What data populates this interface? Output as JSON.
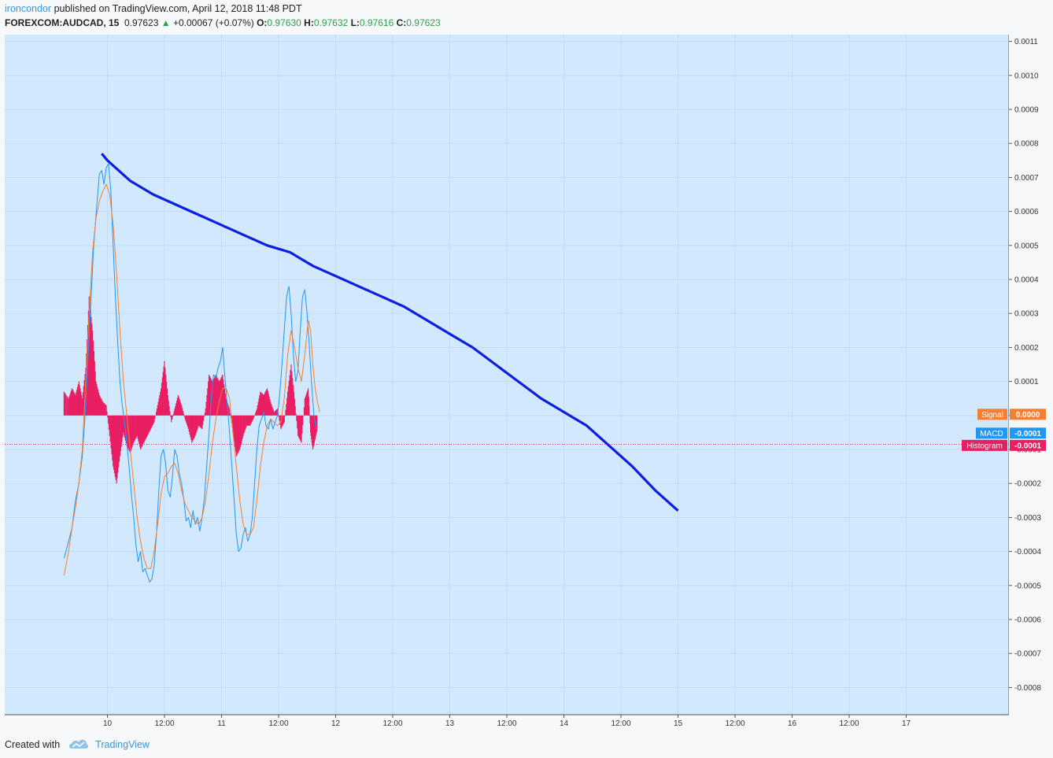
{
  "header": {
    "author": "ironcondor",
    "published_text": "published on TradingView.com, April 12, 2018 11:48 PDT",
    "symbol": "FOREXCOM:AUDCAD, 15",
    "last": "0.97623",
    "change": "+0.00067 (+0.07%)",
    "o_label": "O:",
    "o_value": "0.97630",
    "h_label": "H:",
    "h_value": "0.97632",
    "l_label": "L:",
    "l_value": "0.97616",
    "c_label": "C:",
    "c_value": "0.97623"
  },
  "footer": {
    "created_with": "Created with",
    "brand": "TradingView"
  },
  "colors": {
    "plot_bg": "#d2e8fc",
    "grid": "#c5dcf2",
    "macd": "#2196f3",
    "signal": "#f57f33",
    "histogram": "#e91e63",
    "trend": "#0b1fe0"
  },
  "chart_data": {
    "type": "line",
    "y_range": [
      -0.00088,
      0.00112
    ],
    "y_ticks": [
      "0.0011",
      "0.0010",
      "0.0009",
      "0.0008",
      "0.0007",
      "0.0006",
      "0.0005",
      "0.0004",
      "0.0003",
      "0.0002",
      "0.0001",
      "-0.0000",
      "-0.0001",
      "-0.0002",
      "-0.0003",
      "-0.0004",
      "-0.0005",
      "-0.0006",
      "-0.0007",
      "-0.0008"
    ],
    "x_range": [
      -0.9,
      7.9
    ],
    "x_ticks": [
      {
        "x": 0,
        "label": "10"
      },
      {
        "x": 0.5,
        "label": "12:00"
      },
      {
        "x": 1,
        "label": "11"
      },
      {
        "x": 1.5,
        "label": "12:00"
      },
      {
        "x": 2,
        "label": "12"
      },
      {
        "x": 2.5,
        "label": "12:00"
      },
      {
        "x": 3,
        "label": "13"
      },
      {
        "x": 3.5,
        "label": "12:00"
      },
      {
        "x": 4,
        "label": "14"
      },
      {
        "x": 4.5,
        "label": "12:00"
      },
      {
        "x": 5,
        "label": "15"
      },
      {
        "x": 5.5,
        "label": "12:00"
      },
      {
        "x": 6,
        "label": "16"
      },
      {
        "x": 6.5,
        "label": "12:00"
      },
      {
        "x": 7,
        "label": "17"
      }
    ],
    "series": [
      {
        "name": "MACD",
        "points": [
          [
            -0.38,
            -0.00042
          ],
          [
            -0.34,
            -0.00037
          ],
          [
            -0.31,
            -0.00033
          ],
          [
            -0.28,
            -0.00025
          ],
          [
            -0.25,
            -0.0002
          ],
          [
            -0.22,
            -0.00012
          ],
          [
            -0.2,
            -2e-05
          ],
          [
            -0.18,
            0.0001
          ],
          [
            -0.15,
            0.0003
          ],
          [
            -0.12,
            0.0005
          ],
          [
            -0.09,
            0.00063
          ],
          [
            -0.07,
            0.00071
          ],
          [
            -0.05,
            0.00072
          ],
          [
            -0.03,
            0.00068
          ],
          [
            -0.01,
            0.00073
          ],
          [
            0.01,
            0.00074
          ],
          [
            0.03,
            0.00066
          ],
          [
            0.05,
            0.0005
          ],
          [
            0.07,
            0.00035
          ],
          [
            0.09,
            0.00022
          ],
          [
            0.11,
            0.0001
          ],
          [
            0.13,
            3e-05
          ],
          [
            0.15,
            -2e-05
          ],
          [
            0.17,
            -8e-05
          ],
          [
            0.19,
            -0.00015
          ],
          [
            0.21,
            -0.00023
          ],
          [
            0.23,
            -0.0003
          ],
          [
            0.25,
            -0.00038
          ],
          [
            0.27,
            -0.00043
          ],
          [
            0.29,
            -0.0004
          ],
          [
            0.31,
            -0.00046
          ],
          [
            0.33,
            -0.00045
          ],
          [
            0.35,
            -0.00047
          ],
          [
            0.37,
            -0.00049
          ],
          [
            0.39,
            -0.00048
          ],
          [
            0.41,
            -0.00044
          ],
          [
            0.43,
            -0.00035
          ],
          [
            0.45,
            -0.00022
          ],
          [
            0.47,
            -0.00012
          ],
          [
            0.49,
            -0.0001
          ],
          [
            0.51,
            -0.00014
          ],
          [
            0.53,
            -0.00022
          ],
          [
            0.55,
            -0.00024
          ],
          [
            0.57,
            -0.00018
          ],
          [
            0.59,
            -0.0001
          ],
          [
            0.61,
            -0.00012
          ],
          [
            0.63,
            -0.00017
          ],
          [
            0.65,
            -0.0002
          ],
          [
            0.67,
            -0.00025
          ],
          [
            0.69,
            -0.00031
          ],
          [
            0.71,
            -0.0003
          ],
          [
            0.73,
            -0.00033
          ],
          [
            0.75,
            -0.00028
          ],
          [
            0.77,
            -0.00032
          ],
          [
            0.79,
            -0.0003
          ],
          [
            0.81,
            -0.00034
          ],
          [
            0.83,
            -0.0003
          ],
          [
            0.85,
            -0.00024
          ],
          [
            0.87,
            -0.00015
          ],
          [
            0.89,
            -5e-05
          ],
          [
            0.91,
            5e-05
          ],
          [
            0.93,
            0.00012
          ],
          [
            0.95,
            0.00011
          ],
          [
            0.97,
            0.00014
          ],
          [
            0.99,
            0.00016
          ],
          [
            1.01,
            0.0002
          ],
          [
            1.03,
            0.00011
          ],
          [
            1.05,
            3e-05
          ],
          [
            1.07,
            -5e-05
          ],
          [
            1.09,
            -0.00015
          ],
          [
            1.11,
            -0.00025
          ],
          [
            1.13,
            -0.00035
          ],
          [
            1.15,
            -0.0004
          ],
          [
            1.17,
            -0.00039
          ],
          [
            1.19,
            -0.00035
          ],
          [
            1.21,
            -0.00033
          ],
          [
            1.23,
            -0.00037
          ],
          [
            1.25,
            -0.00035
          ],
          [
            1.27,
            -0.0003
          ],
          [
            1.29,
            -0.0002
          ],
          [
            1.31,
            -0.0001
          ],
          [
            1.33,
            -3e-05
          ],
          [
            1.35,
            -1e-05
          ],
          [
            1.37,
            1e-05
          ],
          [
            1.39,
            -3e-05
          ],
          [
            1.41,
            -4e-05
          ],
          [
            1.43,
            -1e-05
          ],
          [
            1.45,
            -4e-05
          ],
          [
            1.47,
            -2e-05
          ],
          [
            1.49,
            0.0
          ],
          [
            1.51,
            6e-05
          ],
          [
            1.53,
            0.00015
          ],
          [
            1.55,
            0.00025
          ],
          [
            1.57,
            0.00035
          ],
          [
            1.59,
            0.00038
          ],
          [
            1.61,
            0.0003
          ],
          [
            1.63,
            0.00018
          ],
          [
            1.65,
            0.0001
          ],
          [
            1.67,
            0.00013
          ],
          [
            1.69,
            0.00025
          ],
          [
            1.71,
            0.00035
          ],
          [
            1.73,
            0.00037
          ],
          [
            1.75,
            0.0003
          ],
          [
            1.77,
            0.0002
          ],
          [
            1.79,
            9e-05
          ],
          [
            1.81,
            0.0
          ],
          [
            1.83,
            -4e-05
          ]
        ]
      },
      {
        "name": "Signal",
        "points": [
          [
            -0.38,
            -0.00047
          ],
          [
            -0.34,
            -0.0004
          ],
          [
            -0.31,
            -0.00033
          ],
          [
            -0.28,
            -0.00027
          ],
          [
            -0.25,
            -0.0002
          ],
          [
            -0.22,
            -0.0001
          ],
          [
            -0.19,
            0.0001
          ],
          [
            -0.16,
            0.0003
          ],
          [
            -0.13,
            0.00048
          ],
          [
            -0.1,
            0.00058
          ],
          [
            -0.07,
            0.00063
          ],
          [
            -0.04,
            0.00066
          ],
          [
            -0.01,
            0.00068
          ],
          [
            0.02,
            0.00065
          ],
          [
            0.05,
            0.00056
          ],
          [
            0.08,
            0.00042
          ],
          [
            0.11,
            0.00025
          ],
          [
            0.14,
            0.0001
          ],
          [
            0.17,
            0.0
          ],
          [
            0.2,
            -0.0001
          ],
          [
            0.23,
            -0.0002
          ],
          [
            0.26,
            -0.0003
          ],
          [
            0.29,
            -0.00037
          ],
          [
            0.32,
            -0.00042
          ],
          [
            0.35,
            -0.00045
          ],
          [
            0.38,
            -0.00045
          ],
          [
            0.41,
            -0.0004
          ],
          [
            0.44,
            -0.00032
          ],
          [
            0.47,
            -0.00023
          ],
          [
            0.5,
            -0.00018
          ],
          [
            0.53,
            -0.00017
          ],
          [
            0.56,
            -0.00015
          ],
          [
            0.59,
            -0.00014
          ],
          [
            0.62,
            -0.00017
          ],
          [
            0.65,
            -0.00022
          ],
          [
            0.68,
            -0.00026
          ],
          [
            0.71,
            -0.00028
          ],
          [
            0.74,
            -0.0003
          ],
          [
            0.77,
            -0.00031
          ],
          [
            0.8,
            -0.00032
          ],
          [
            0.83,
            -0.0003
          ],
          [
            0.86,
            -0.00025
          ],
          [
            0.89,
            -0.00017
          ],
          [
            0.92,
            -8e-05
          ],
          [
            0.95,
            -1e-05
          ],
          [
            0.98,
            4e-05
          ],
          [
            1.01,
            8e-05
          ],
          [
            1.04,
            8e-05
          ],
          [
            1.07,
            5e-05
          ],
          [
            1.1,
            -5e-05
          ],
          [
            1.13,
            -0.00015
          ],
          [
            1.16,
            -0.00025
          ],
          [
            1.19,
            -0.00032
          ],
          [
            1.22,
            -0.00035
          ],
          [
            1.25,
            -0.00035
          ],
          [
            1.28,
            -0.00033
          ],
          [
            1.31,
            -0.00025
          ],
          [
            1.34,
            -0.00015
          ],
          [
            1.37,
            -8e-05
          ],
          [
            1.4,
            -3e-05
          ],
          [
            1.43,
            -1e-05
          ],
          [
            1.46,
            -2e-05
          ],
          [
            1.49,
            -3e-05
          ],
          [
            1.52,
            -2e-05
          ],
          [
            1.55,
            5e-05
          ],
          [
            1.58,
            0.00018
          ],
          [
            1.61,
            0.00025
          ],
          [
            1.64,
            0.0002
          ],
          [
            1.67,
            0.00014
          ],
          [
            1.7,
            0.0001
          ],
          [
            1.73,
            0.00018
          ],
          [
            1.76,
            0.00028
          ],
          [
            1.78,
            0.00025
          ],
          [
            1.8,
            0.00015
          ],
          [
            1.82,
            8e-05
          ],
          [
            1.84,
            4e-05
          ],
          [
            1.86,
            1e-05
          ]
        ]
      },
      {
        "name": "Trend",
        "points": [
          [
            -0.05,
            0.00077
          ],
          [
            0.0,
            0.00075
          ],
          [
            0.2,
            0.00069
          ],
          [
            0.4,
            0.00065
          ],
          [
            0.6,
            0.00062
          ],
          [
            0.8,
            0.00059
          ],
          [
            1.0,
            0.00056
          ],
          [
            1.2,
            0.00053
          ],
          [
            1.4,
            0.0005
          ],
          [
            1.6,
            0.00048
          ],
          [
            1.8,
            0.00044
          ],
          [
            2.0,
            0.00041
          ],
          [
            2.2,
            0.00038
          ],
          [
            2.4,
            0.00035
          ],
          [
            2.6,
            0.00032
          ],
          [
            2.8,
            0.00028
          ],
          [
            3.0,
            0.00024
          ],
          [
            3.2,
            0.0002
          ],
          [
            3.4,
            0.00015
          ],
          [
            3.6,
            0.0001
          ],
          [
            3.8,
            5e-05
          ],
          [
            4.0,
            1e-05
          ],
          [
            4.2,
            -3e-05
          ],
          [
            4.4,
            -9e-05
          ],
          [
            4.6,
            -0.00015
          ],
          [
            4.8,
            -0.00022
          ],
          [
            5.0,
            -0.00028
          ]
        ]
      }
    ],
    "histogram": [
      [
        -0.38,
        7e-05
      ],
      [
        -0.34,
        5e-05
      ],
      [
        -0.31,
        8e-05
      ],
      [
        -0.28,
        6e-05
      ],
      [
        -0.25,
        0.0001
      ],
      [
        -0.22,
        5e-05
      ],
      [
        -0.19,
        0.00014
      ],
      [
        -0.16,
        0.00035
      ],
      [
        -0.13,
        0.00025
      ],
      [
        -0.1,
        0.0001
      ],
      [
        -0.07,
        6e-05
      ],
      [
        -0.04,
        4e-05
      ],
      [
        -0.01,
        3e-05
      ],
      [
        0.02,
        -6e-05
      ],
      [
        0.05,
        -0.00015
      ],
      [
        0.08,
        -0.0002
      ],
      [
        0.11,
        -0.00012
      ],
      [
        0.14,
        -5e-05
      ],
      [
        0.17,
        -9e-05
      ],
      [
        0.2,
        -0.00011
      ],
      [
        0.23,
        -8e-05
      ],
      [
        0.26,
        -6e-05
      ],
      [
        0.29,
        -0.0001
      ],
      [
        0.32,
        -8e-05
      ],
      [
        0.35,
        -6e-05
      ],
      [
        0.38,
        -4e-05
      ],
      [
        0.41,
        -2e-05
      ],
      [
        0.44,
        3e-05
      ],
      [
        0.47,
        8e-05
      ],
      [
        0.5,
        0.00016
      ],
      [
        0.53,
        6e-05
      ],
      [
        0.56,
        -2e-05
      ],
      [
        0.59,
        2e-05
      ],
      [
        0.62,
        6e-05
      ],
      [
        0.65,
        3e-05
      ],
      [
        0.68,
        -1e-05
      ],
      [
        0.71,
        -4e-05
      ],
      [
        0.74,
        -8e-05
      ],
      [
        0.77,
        -6e-05
      ],
      [
        0.8,
        -3e-05
      ],
      [
        0.83,
        -4e-05
      ],
      [
        0.86,
        2e-05
      ],
      [
        0.89,
        0.00012
      ],
      [
        0.92,
        0.0001
      ],
      [
        0.95,
        0.00012
      ],
      [
        0.98,
        0.0001
      ],
      [
        1.01,
        0.00012
      ],
      [
        1.04,
        5e-05
      ],
      [
        1.07,
        2e-05
      ],
      [
        1.1,
        -5e-05
      ],
      [
        1.13,
        -0.00012
      ],
      [
        1.16,
        -0.0001
      ],
      [
        1.19,
        -6e-05
      ],
      [
        1.22,
        -3e-05
      ],
      [
        1.25,
        -3e-05
      ],
      [
        1.28,
        -1e-05
      ],
      [
        1.31,
        2e-05
      ],
      [
        1.34,
        7e-05
      ],
      [
        1.37,
        6e-05
      ],
      [
        1.4,
        8e-05
      ],
      [
        1.43,
        4e-05
      ],
      [
        1.46,
        1e-05
      ],
      [
        1.49,
        2e-05
      ],
      [
        1.52,
        -4e-05
      ],
      [
        1.55,
        -2e-05
      ],
      [
        1.58,
        7e-05
      ],
      [
        1.61,
        0.00015
      ],
      [
        1.64,
        5e-05
      ],
      [
        1.67,
        -6e-05
      ],
      [
        1.7,
        -8e-05
      ],
      [
        1.73,
        5e-05
      ],
      [
        1.76,
        8e-05
      ],
      [
        1.78,
        -5e-05
      ],
      [
        1.8,
        -0.0001
      ],
      [
        1.82,
        -7e-05
      ],
      [
        1.84,
        -4e-05
      ]
    ],
    "markers": [
      {
        "label": "Signal",
        "value": "0.0000"
      },
      {
        "label": "MACD",
        "value": "-0.0001"
      },
      {
        "label": "Histogram",
        "value": "-0.0001"
      }
    ]
  }
}
